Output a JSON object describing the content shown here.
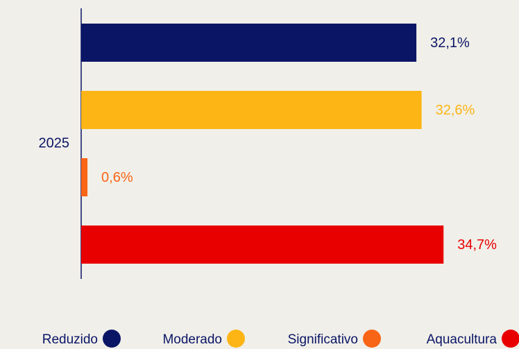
{
  "chart_data": {
    "type": "bar",
    "orientation": "horizontal",
    "categories": [
      "2025"
    ],
    "series": [
      {
        "name": "Reduzido",
        "color": "#0b1566",
        "values": [
          32.1
        ],
        "value_labels": [
          "32,1%"
        ]
      },
      {
        "name": "Moderado",
        "color": "#fdb515",
        "values": [
          32.6
        ],
        "value_labels": [
          "32,6%"
        ]
      },
      {
        "name": "Significativo",
        "color": "#f96516",
        "values": [
          0.6
        ],
        "value_labels": [
          "0,6%"
        ]
      },
      {
        "name": "Aquacultura",
        "color": "#e80000",
        "values": [
          34.7
        ],
        "value_labels": [
          "34,7%"
        ]
      }
    ],
    "legend": "bottom"
  }
}
